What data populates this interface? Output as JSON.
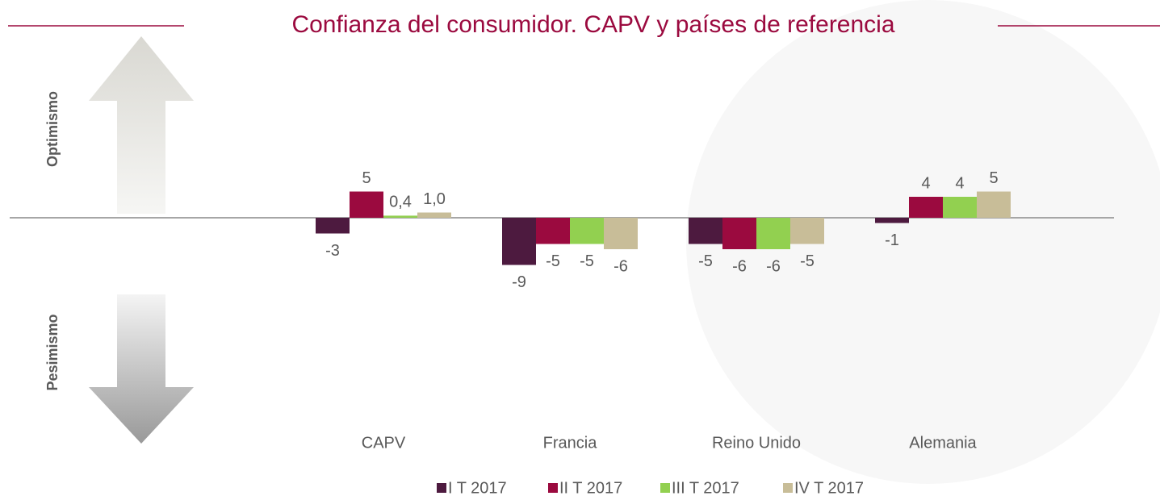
{
  "chart_data": {
    "type": "bar",
    "title": "Confianza del consumidor. CAPV y países de referencia",
    "up_label": "Optimismo",
    "down_label": "Pesimismo",
    "categories": [
      "CAPV",
      "Francia",
      "Reino Unido",
      "Alemania"
    ],
    "series": [
      {
        "name": "I T 2017",
        "color": "#4d1a3f",
        "values": [
          -3,
          -9,
          -5,
          -1
        ],
        "value_labels": [
          "-3",
          "-9",
          "-5",
          "-1"
        ]
      },
      {
        "name": "II T 2017",
        "color": "#9b0a3f",
        "values": [
          5,
          -5,
          -6,
          4
        ],
        "value_labels": [
          "5",
          "-5",
          "-6",
          "4"
        ]
      },
      {
        "name": "III T 2017",
        "color": "#92d050",
        "values": [
          0.4,
          -5,
          -6,
          4
        ],
        "value_labels": [
          "0,4",
          "-5",
          "-6",
          "4"
        ]
      },
      {
        "name": "IV T 2017",
        "color": "#c8bd98",
        "values": [
          1.0,
          -6,
          -5,
          5
        ],
        "value_labels": [
          "1,0",
          "-6",
          "-5",
          "5"
        ]
      }
    ]
  }
}
